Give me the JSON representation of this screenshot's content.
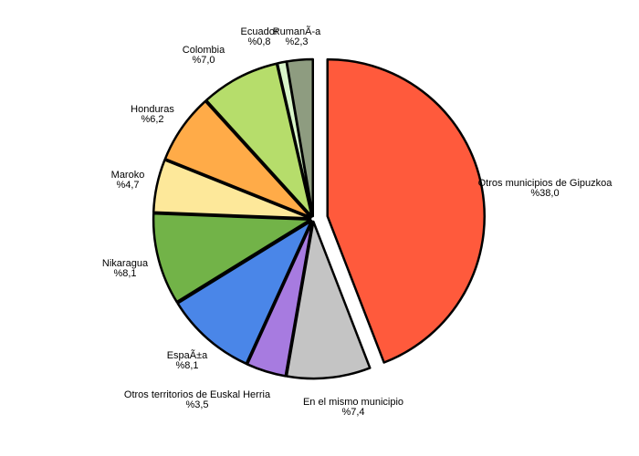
{
  "chart_data": {
    "type": "pie",
    "title": "",
    "start": "top",
    "direction": "clockwise",
    "exploded_slice": "Otros municipios de Gipuzkoa",
    "slices": [
      {
        "label": "Otros municipios de Gipuzkoa",
        "value": 38.0,
        "value_label": "%38,0",
        "color": "#ff5a3c"
      },
      {
        "label": "En el mismo municipio",
        "value": 7.4,
        "value_label": "%7,4",
        "color": "#c4c4c4"
      },
      {
        "label": "Otros territorios de Euskal Herria",
        "value": 3.5,
        "value_label": "%3,5",
        "color": "#a77be0"
      },
      {
        "label": "EspaÃ±a",
        "value": 8.1,
        "value_label": "%8,1",
        "color": "#4a86e8"
      },
      {
        "label": "Nikaragua",
        "value": 8.1,
        "value_label": "%8,1",
        "color": "#72b348"
      },
      {
        "label": "Maroko",
        "value": 4.7,
        "value_label": "%4,7",
        "color": "#fde89a"
      },
      {
        "label": "Honduras",
        "value": 6.2,
        "value_label": "%6,2",
        "color": "#ffab48"
      },
      {
        "label": "Colombia",
        "value": 7.0,
        "value_label": "%7,0",
        "color": "#b6dd6b"
      },
      {
        "label": "Ecuador",
        "value": 0.8,
        "value_label": "%0,8",
        "color": "#d9f5c9"
      },
      {
        "label": "RumanÃ-a",
        "value": 2.3,
        "value_label": "%2,3",
        "color": "#8e9c80"
      }
    ]
  }
}
